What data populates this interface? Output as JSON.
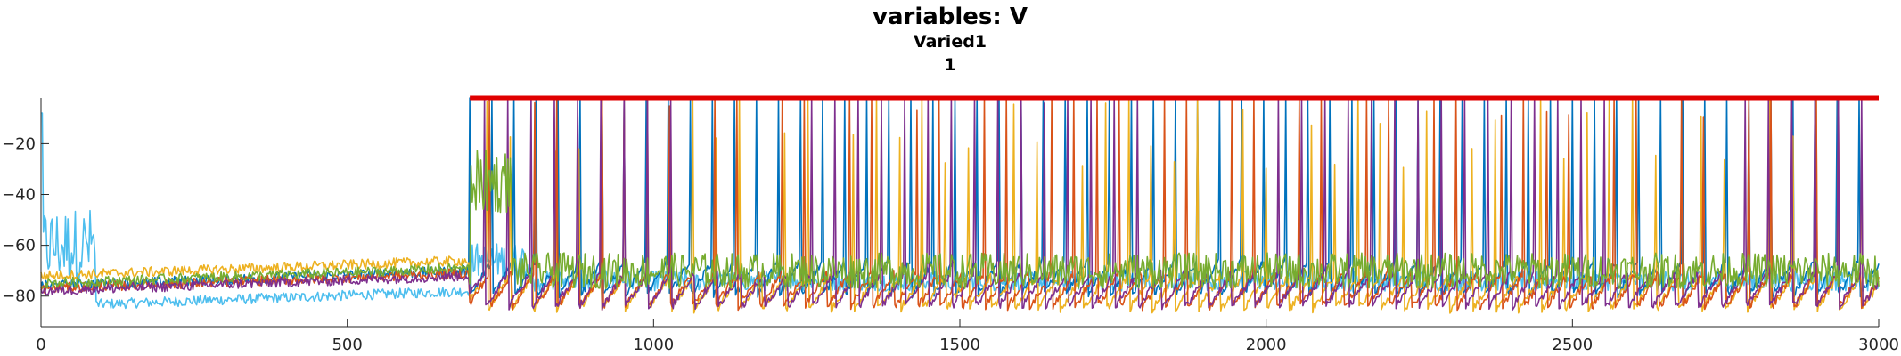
{
  "chart_data": {
    "type": "line",
    "title": "variables: V",
    "subtitle": "Varied1",
    "subtitle2": "1",
    "xlabel": "",
    "ylabel": "",
    "xlim": [
      0,
      3000
    ],
    "ylim": [
      -92,
      -2
    ],
    "xticks": [
      0,
      500,
      1000,
      1500,
      2000,
      2500,
      3000
    ],
    "yticks": [
      -20,
      -40,
      -60,
      -80
    ],
    "grid": false,
    "legend": "none",
    "colors": {
      "series1": "#0072BD",
      "series2": "#D95319",
      "series3": "#EDB120",
      "series4": "#7E2F8E",
      "series5": "#77AC30",
      "series6": "#4DBEEE",
      "marker_bar": "#E00000"
    },
    "marker_bar": {
      "x_start": 700,
      "x_end": 3000,
      "y": -2
    },
    "series": [
      {
        "values": {
          "baseline_early": -76,
          "baseline_late": -80,
          "spike_peak": -3,
          "burst_start": 700
        }
      },
      {
        "values": {
          "baseline_early": -77,
          "baseline_late": -85,
          "spike_peak": -10,
          "burst_start": 700
        }
      },
      {
        "values": {
          "baseline_early": -72,
          "baseline_late": -86,
          "spike_peak": -30,
          "burst_start": 700
        }
      },
      {
        "values": {
          "baseline_early": -78,
          "baseline_late": -85,
          "spike_peak": -5,
          "burst_start": 700
        }
      },
      {
        "values": {
          "baseline_early": -75,
          "baseline_late": -70,
          "spike_peak": -20,
          "burst_start": 700
        }
      },
      {
        "values": {
          "baseline_early": -84,
          "baseline_late": -74,
          "spike_peak": -3,
          "burst_start": 0
        }
      }
    ]
  }
}
